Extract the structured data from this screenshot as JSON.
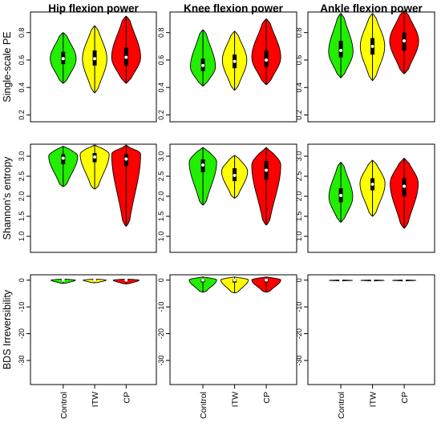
{
  "chart_data": {
    "type": "violin",
    "categories": [
      "Control",
      "ITW",
      "CP"
    ],
    "colors": {
      "Control": "#22ee00",
      "ITW": "#ffff00",
      "CP": "#ff0000"
    },
    "columns": [
      "Hip flexion power",
      "Knee flexion power",
      "Ankle flexion power"
    ],
    "rows": [
      {
        "ylabel": "Single-scale PE",
        "ylim": [
          0.15,
          0.95
        ],
        "ticks": [
          "0.2",
          "0.4",
          "0.6",
          "0.8"
        ],
        "tick_values": [
          0.2,
          0.4,
          0.6,
          0.8
        ]
      },
      {
        "ylabel": "Shannon's entropy",
        "ylim": [
          0.6,
          3.3
        ],
        "ticks": [
          "1.0",
          "1.5",
          "2.0",
          "2.5",
          "3.0"
        ],
        "tick_values": [
          1.0,
          1.5,
          2.0,
          2.5,
          3.0
        ]
      },
      {
        "ylabel": "BDS Irreversibility",
        "ylim": [
          -39,
          2
        ],
        "ticks": [
          "-30",
          "-20",
          "-10",
          "0"
        ],
        "tick_values": [
          -30,
          -20,
          -10,
          0
        ]
      }
    ],
    "violins": [
      [
        [
          {
            "min": 0.43,
            "max": 0.8,
            "q1": 0.57,
            "median": 0.61,
            "q3": 0.66,
            "mode": 0.61,
            "width": 0.85
          },
          {
            "min": 0.36,
            "max": 0.85,
            "q1": 0.56,
            "median": 0.61,
            "q3": 0.67,
            "mode": 0.61,
            "width": 0.8
          },
          {
            "min": 0.43,
            "max": 0.92,
            "q1": 0.56,
            "median": 0.62,
            "q3": 0.69,
            "mode": 0.62,
            "width": 0.95
          }
        ],
        [
          {
            "min": 0.41,
            "max": 0.82,
            "q1": 0.52,
            "median": 0.56,
            "q3": 0.61,
            "mode": 0.55,
            "width": 0.82
          },
          {
            "min": 0.38,
            "max": 0.81,
            "q1": 0.54,
            "median": 0.59,
            "q3": 0.64,
            "mode": 0.6,
            "width": 0.8
          },
          {
            "min": 0.42,
            "max": 0.9,
            "q1": 0.55,
            "median": 0.6,
            "q3": 0.67,
            "mode": 0.62,
            "width": 0.95
          }
        ],
        [
          {
            "min": 0.47,
            "max": 0.94,
            "q1": 0.62,
            "median": 0.67,
            "q3": 0.74,
            "mode": 0.66,
            "width": 0.8
          },
          {
            "min": 0.45,
            "max": 0.94,
            "q1": 0.64,
            "median": 0.7,
            "q3": 0.76,
            "mode": 0.7,
            "width": 0.8
          },
          {
            "min": 0.5,
            "max": 0.96,
            "q1": 0.67,
            "median": 0.74,
            "q3": 0.8,
            "mode": 0.74,
            "width": 0.95
          }
        ]
      ],
      [
        [
          {
            "min": 2.24,
            "max": 3.25,
            "q1": 2.8,
            "median": 2.95,
            "q3": 3.05,
            "mode": 3.0,
            "width": 0.95
          },
          {
            "min": 2.18,
            "max": 3.28,
            "q1": 2.85,
            "median": 2.98,
            "q3": 3.08,
            "mode": 3.05,
            "width": 0.95
          },
          {
            "min": 1.25,
            "max": 3.28,
            "q1": 2.75,
            "median": 2.93,
            "q3": 3.05,
            "mode": 3.05,
            "width": 0.95
          }
        ],
        [
          {
            "min": 1.78,
            "max": 3.22,
            "q1": 2.6,
            "median": 2.78,
            "q3": 2.92,
            "mode": 2.85,
            "width": 0.9
          },
          {
            "min": 1.95,
            "max": 3.02,
            "q1": 2.38,
            "median": 2.52,
            "q3": 2.7,
            "mode": 2.62,
            "width": 0.85
          },
          {
            "min": 1.28,
            "max": 3.22,
            "q1": 2.42,
            "median": 2.65,
            "q3": 2.88,
            "mode": 2.78,
            "width": 0.95
          }
        ],
        [
          {
            "min": 1.35,
            "max": 2.85,
            "q1": 1.85,
            "median": 2.02,
            "q3": 2.2,
            "mode": 1.98,
            "width": 0.78
          },
          {
            "min": 1.5,
            "max": 2.9,
            "q1": 2.15,
            "median": 2.3,
            "q3": 2.45,
            "mode": 2.32,
            "width": 0.82
          },
          {
            "min": 1.2,
            "max": 2.95,
            "q1": 2.0,
            "median": 2.25,
            "q3": 2.45,
            "mode": 2.32,
            "width": 0.92
          }
        ]
      ],
      [
        [
          {
            "min": -1.2,
            "max": 0.4,
            "q1": -0.2,
            "median": 0.0,
            "q3": 0.1,
            "mode": 0.0,
            "width": 0.8
          },
          {
            "min": -1.0,
            "max": 0.4,
            "q1": -0.2,
            "median": 0.0,
            "q3": 0.1,
            "mode": 0.0,
            "width": 0.75
          },
          {
            "min": -1.4,
            "max": 0.4,
            "q1": -0.2,
            "median": 0.0,
            "q3": 0.1,
            "mode": 0.0,
            "width": 0.85
          }
        ],
        [
          {
            "min": -4.5,
            "max": 1.2,
            "q1": -0.8,
            "median": 0.0,
            "q3": 0.4,
            "mode": 0.1,
            "width": 0.9
          },
          {
            "min": -4.8,
            "max": 1.2,
            "q1": -0.9,
            "median": 0.0,
            "q3": 0.4,
            "mode": 0.1,
            "width": 0.9
          },
          {
            "min": -4.5,
            "max": 1.2,
            "q1": -0.8,
            "median": 0.0,
            "q3": 0.4,
            "mode": 0.1,
            "width": 0.95
          }
        ],
        [
          {
            "min": -0.25,
            "max": 0.05,
            "q1": -0.15,
            "median": -0.1,
            "q3": -0.05,
            "mode": -0.1,
            "width": 0.75
          },
          {
            "min": -0.25,
            "max": 0.05,
            "q1": -0.15,
            "median": -0.1,
            "q3": -0.05,
            "mode": -0.1,
            "width": 0.75
          },
          {
            "min": -0.25,
            "max": 0.05,
            "q1": -0.15,
            "median": -0.1,
            "q3": -0.05,
            "mode": -0.1,
            "width": 0.75
          }
        ]
      ]
    ]
  }
}
